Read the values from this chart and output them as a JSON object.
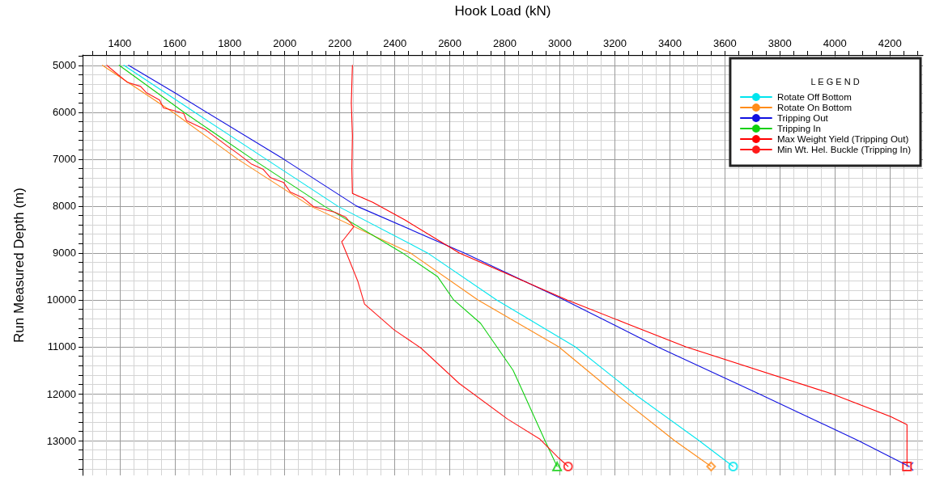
{
  "chart_data": {
    "type": "line",
    "xlabel": "Hook Load (kN)",
    "ylabel": "Run Measured Depth (m)",
    "legend_title": "L E G E N D",
    "legend": "top right",
    "grid": true,
    "line_style": "solid",
    "xlim": [
      1265,
      4320
    ],
    "ylim": [
      13740,
      4780
    ],
    "xticks": [
      {
        "value": 1300,
        "label": null
      },
      {
        "value": 1350,
        "label": null
      },
      1400,
      {
        "value": 1450,
        "label": null
      },
      {
        "value": 1500,
        "label": null
      },
      {
        "value": 1550,
        "label": null
      },
      1600,
      {
        "value": 1650,
        "label": null
      },
      {
        "value": 1700,
        "label": null
      },
      {
        "value": 1750,
        "label": null
      },
      1800,
      {
        "value": 1850,
        "label": null
      },
      {
        "value": 1900,
        "label": null
      },
      {
        "value": 1950,
        "label": null
      },
      2000,
      {
        "value": 2050,
        "label": null
      },
      {
        "value": 2100,
        "label": null
      },
      {
        "value": 2150,
        "label": null
      },
      2200,
      {
        "value": 2250,
        "label": null
      },
      {
        "value": 2300,
        "label": null
      },
      {
        "value": 2350,
        "label": null
      },
      2400,
      {
        "value": 2450,
        "label": null
      },
      {
        "value": 2500,
        "label": null
      },
      {
        "value": 2550,
        "label": null
      },
      2600,
      {
        "value": 2650,
        "label": null
      },
      {
        "value": 2700,
        "label": null
      },
      {
        "value": 2750,
        "label": null
      },
      2800,
      {
        "value": 2850,
        "label": null
      },
      {
        "value": 2900,
        "label": null
      },
      {
        "value": 2950,
        "label": null
      },
      3000,
      {
        "value": 3050,
        "label": null
      },
      {
        "value": 3100,
        "label": null
      },
      {
        "value": 3150,
        "label": null
      },
      3200,
      {
        "value": 3250,
        "label": null
      },
      {
        "value": 3300,
        "label": null
      },
      {
        "value": 3350,
        "label": null
      },
      3400,
      {
        "value": 3450,
        "label": null
      },
      {
        "value": 3500,
        "label": null
      },
      {
        "value": 3550,
        "label": null
      },
      3600,
      {
        "value": 3650,
        "label": null
      },
      {
        "value": 3700,
        "label": null
      },
      {
        "value": 3750,
        "label": null
      },
      3800,
      {
        "value": 3850,
        "label": null
      },
      {
        "value": 3900,
        "label": null
      },
      {
        "value": 3950,
        "label": null
      },
      4000,
      {
        "value": 4050,
        "label": null
      },
      {
        "value": 4100,
        "label": null
      },
      {
        "value": 4150,
        "label": null
      },
      4200,
      {
        "value": 4250,
        "label": null
      },
      {
        "value": 4300,
        "label": null
      }
    ],
    "yticks": [
      {
        "value": 4800,
        "label": null
      },
      5000,
      {
        "value": 5200,
        "label": null
      },
      {
        "value": 5400,
        "label": null
      },
      {
        "value": 5600,
        "label": null
      },
      {
        "value": 5800,
        "label": null
      },
      6000,
      {
        "value": 6200,
        "label": null
      },
      {
        "value": 6400,
        "label": null
      },
      {
        "value": 6600,
        "label": null
      },
      {
        "value": 6800,
        "label": null
      },
      7000,
      {
        "value": 7200,
        "label": null
      },
      {
        "value": 7400,
        "label": null
      },
      {
        "value": 7600,
        "label": null
      },
      {
        "value": 7800,
        "label": null
      },
      8000,
      {
        "value": 8200,
        "label": null
      },
      {
        "value": 8400,
        "label": null
      },
      {
        "value": 8600,
        "label": null
      },
      {
        "value": 8800,
        "label": null
      },
      9000,
      {
        "value": 9200,
        "label": null
      },
      {
        "value": 9400,
        "label": null
      },
      {
        "value": 9600,
        "label": null
      },
      {
        "value": 9800,
        "label": null
      },
      10000,
      {
        "value": 10200,
        "label": null
      },
      {
        "value": 10400,
        "label": null
      },
      {
        "value": 10600,
        "label": null
      },
      {
        "value": 10800,
        "label": null
      },
      11000,
      {
        "value": 11200,
        "label": null
      },
      {
        "value": 11400,
        "label": null
      },
      {
        "value": 11600,
        "label": null
      },
      {
        "value": 11800,
        "label": null
      },
      12000,
      {
        "value": 12200,
        "label": null
      },
      {
        "value": 12400,
        "label": null
      },
      {
        "value": 12600,
        "label": null
      },
      {
        "value": 12800,
        "label": null
      },
      13000,
      {
        "value": 13200,
        "label": null
      },
      {
        "value": 13400,
        "label": null
      },
      {
        "value": 13600,
        "label": null
      }
    ],
    "series": [
      {
        "name": "Rotate Off Bottom",
        "color": "#00e5ee",
        "x": [
          1415,
          1672,
          1932,
          2192,
          2519,
          2770,
          3056,
          3270,
          3506,
          3630
        ],
        "values": [
          5000,
          6000,
          7000,
          8000,
          9000,
          10000,
          11000,
          12000,
          13000,
          13550
        ]
      },
      {
        "name": "Rotate On Bottom",
        "color": "#ff8c1a",
        "x": [
          1337,
          1593,
          1829,
          2093,
          2457,
          2702,
          2996,
          3202,
          3417,
          3550
        ],
        "values": [
          5000,
          6000,
          7000,
          8000,
          9000,
          10000,
          11000,
          12000,
          13000,
          13550
        ]
      },
      {
        "name": "Tripping Out",
        "color": "#1010e0",
        "x": [
          1432,
          1604,
          1996,
          2261,
          2653,
          3016,
          3355,
          3723,
          4085,
          4270
        ],
        "values": [
          5000,
          5600,
          7000,
          8000,
          9000,
          10000,
          11000,
          12000,
          13000,
          13550
        ]
      },
      {
        "name": "Tripping In",
        "color": "#10d010",
        "x": [
          1398,
          1633,
          1883,
          2143,
          2428,
          2555,
          2614,
          2712,
          2771,
          2830,
          2869,
          2946,
          2990
        ],
        "values": [
          5000,
          6000,
          7000,
          8000,
          9000,
          9500,
          10000,
          10500,
          11000,
          11500,
          12000,
          13000,
          13550
        ]
      },
      {
        "name": "Max Weight Yield (Tripping Out)",
        "color": "#ff0000",
        "x": [
          2246,
          2242,
          2246,
          2244,
          2246,
          2320,
          2438,
          2635,
          3026,
          3241,
          3458,
          3988,
          4204,
          4262,
          4262
        ],
        "values": [
          5000,
          5800,
          6500,
          7200,
          7730,
          7920,
          8300,
          9000,
          10000,
          10500,
          11000,
          12000,
          12490,
          12660,
          13550
        ]
      },
      {
        "name": "Min Wt. Hel. Buckle (Tripping In)",
        "color": "#ff1a1a",
        "x": [
          1353,
          1398,
          1427,
          1476,
          1496,
          1545,
          1559,
          1594,
          1633,
          1643,
          1711,
          1800,
          1829,
          1878,
          1922,
          1947,
          1996,
          2020,
          2065,
          2104,
          2182,
          2222,
          2251,
          2212,
          2207,
          2231,
          2266,
          2290,
          2398,
          2496,
          2634,
          2810,
          2928,
          2996,
          3030
        ],
        "values": [
          5000,
          5220,
          5360,
          5450,
          5580,
          5740,
          5910,
          5960,
          6030,
          6180,
          6370,
          6760,
          6880,
          7100,
          7220,
          7390,
          7500,
          7700,
          7820,
          8010,
          8130,
          8240,
          8440,
          8730,
          8760,
          9100,
          9610,
          10090,
          10640,
          11030,
          11780,
          12540,
          12970,
          13370,
          13550
        ]
      },
      {
        "type": "scatter",
        "color": "#00e5ee",
        "marker": "circle",
        "x": [
          3630
        ],
        "values": [
          13550
        ]
      },
      {
        "type": "scatter",
        "color": "#ff8c1a",
        "marker": "diamond",
        "x": [
          3550
        ],
        "values": [
          13550
        ]
      },
      {
        "type": "scatter",
        "color": "#1010e0",
        "marker": "cross",
        "x": [
          4270
        ],
        "values": [
          13550
        ]
      },
      {
        "type": "scatter",
        "color": "#10d010",
        "marker": "triangle",
        "x": [
          2990
        ],
        "values": [
          13550
        ]
      },
      {
        "type": "scatter",
        "color": "#ff0000",
        "marker": "square",
        "x": [
          4262
        ],
        "values": [
          13550
        ]
      },
      {
        "type": "scatter",
        "color": "#ff1a1a",
        "marker": "circle",
        "x": [
          3030
        ],
        "values": [
          13550
        ]
      }
    ]
  }
}
